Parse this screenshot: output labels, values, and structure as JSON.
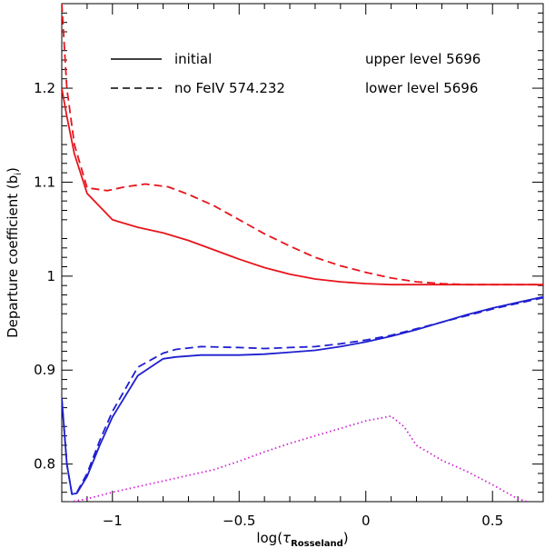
{
  "chart_data": {
    "type": "line",
    "title": "",
    "xlabel_prefix": "log(",
    "xlabel_symbol": "τ",
    "xlabel_subscript": "Rosseland",
    "xlabel_suffix": ")",
    "ylabel_main": "Departure coefficient (b",
    "ylabel_subscript": "i",
    "ylabel_suffix": ")",
    "xlim": [
      -1.2,
      0.7
    ],
    "ylim": [
      0.76,
      1.29
    ],
    "xticks": [
      -1,
      -0.5,
      0,
      0.5
    ],
    "xtick_labels": [
      "−1",
      "−0.5",
      "0",
      "0.5"
    ],
    "yticks": [
      0.8,
      0.9,
      1.0,
      1.1,
      1.2
    ],
    "ytick_labels": [
      "0.8",
      "0.9",
      "1",
      "1.1",
      "1.2"
    ],
    "legend": {
      "style_entries": [
        {
          "label": "initial",
          "dash": "solid"
        },
        {
          "label": "no FeIV 574.232",
          "dash": "dashed"
        }
      ],
      "color_entries": [
        {
          "label": "upper level 5696",
          "color": "#e8141c"
        },
        {
          "label": "lower level 5696",
          "color": "#1f1fd0"
        }
      ]
    },
    "series": [
      {
        "name": "upper level 5696 initial",
        "color": "#e8141c",
        "dash": "solid",
        "x": [
          -1.2,
          -1.18,
          -1.15,
          -1.1,
          -1.0,
          -0.9,
          -0.8,
          -0.7,
          -0.6,
          -0.5,
          -0.4,
          -0.3,
          -0.2,
          -0.1,
          0.0,
          0.1,
          0.2,
          0.3,
          0.4,
          0.5,
          0.6,
          0.7
        ],
        "y": [
          1.2,
          1.17,
          1.13,
          1.088,
          1.06,
          1.052,
          1.046,
          1.038,
          1.028,
          1.018,
          1.009,
          1.002,
          0.997,
          0.994,
          0.992,
          0.991,
          0.991,
          0.991,
          0.991,
          0.991,
          0.991,
          0.991
        ]
      },
      {
        "name": "upper level 5696 no FeIV 574.232",
        "color": "#e8141c",
        "dash": "dashed",
        "x": [
          -1.2,
          -1.18,
          -1.15,
          -1.1,
          -1.02,
          -0.95,
          -0.87,
          -0.78,
          -0.7,
          -0.6,
          -0.5,
          -0.4,
          -0.3,
          -0.2,
          -0.1,
          0.0,
          0.1,
          0.2,
          0.3,
          0.4,
          0.5,
          0.6,
          0.7
        ],
        "y": [
          1.29,
          1.2,
          1.14,
          1.094,
          1.091,
          1.095,
          1.098,
          1.095,
          1.087,
          1.075,
          1.06,
          1.045,
          1.032,
          1.02,
          1.011,
          1.004,
          0.998,
          0.994,
          0.992,
          0.991,
          0.991,
          0.991,
          0.991
        ]
      },
      {
        "name": "lower level 5696 initial",
        "color": "#1f1fd0",
        "dash": "solid",
        "x": [
          -1.2,
          -1.18,
          -1.16,
          -1.14,
          -1.1,
          -1.05,
          -1.0,
          -0.9,
          -0.8,
          -0.75,
          -0.65,
          -0.5,
          -0.4,
          -0.3,
          -0.2,
          -0.1,
          0.0,
          0.1,
          0.2,
          0.3,
          0.4,
          0.5,
          0.6,
          0.7
        ],
        "y": [
          0.87,
          0.8,
          0.768,
          0.769,
          0.787,
          0.82,
          0.85,
          0.894,
          0.912,
          0.914,
          0.916,
          0.916,
          0.917,
          0.919,
          0.921,
          0.925,
          0.93,
          0.936,
          0.943,
          0.951,
          0.959,
          0.966,
          0.972,
          0.978
        ]
      },
      {
        "name": "lower level 5696 no FeIV 574.232",
        "color": "#1f1fd0",
        "dash": "dashed",
        "x": [
          -1.2,
          -1.18,
          -1.16,
          -1.14,
          -1.1,
          -1.05,
          -1.0,
          -0.9,
          -0.8,
          -0.75,
          -0.65,
          -0.5,
          -0.4,
          -0.3,
          -0.2,
          -0.1,
          0.0,
          0.1,
          0.2,
          0.3,
          0.4,
          0.5,
          0.6,
          0.7
        ],
        "y": [
          0.87,
          0.8,
          0.768,
          0.77,
          0.79,
          0.825,
          0.856,
          0.903,
          0.918,
          0.922,
          0.925,
          0.924,
          0.923,
          0.924,
          0.925,
          0.928,
          0.932,
          0.937,
          0.944,
          0.951,
          0.958,
          0.965,
          0.971,
          0.977
        ]
      },
      {
        "name": "dotted curve",
        "color": "#d020d0",
        "dash": "dotted",
        "x": [
          -1.2,
          -1.1,
          -1.0,
          -0.9,
          -0.8,
          -0.7,
          -0.6,
          -0.5,
          -0.4,
          -0.3,
          -0.2,
          -0.1,
          0.0,
          0.1,
          0.15,
          0.2,
          0.3,
          0.4,
          0.5,
          0.6,
          0.7
        ],
        "y": [
          0.758,
          0.763,
          0.77,
          0.776,
          0.782,
          0.788,
          0.794,
          0.803,
          0.813,
          0.822,
          0.83,
          0.838,
          0.846,
          0.851,
          0.84,
          0.82,
          0.804,
          0.792,
          0.778,
          0.763,
          0.755
        ]
      }
    ]
  }
}
